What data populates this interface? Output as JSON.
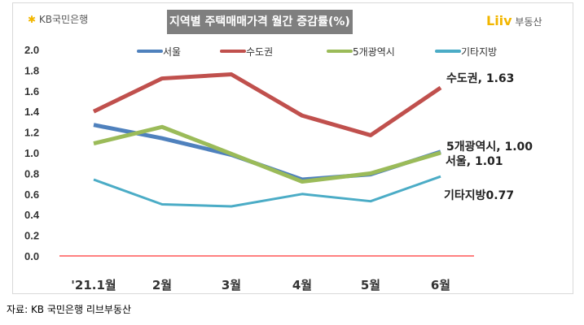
{
  "header": {
    "bank_logo": "KB국민은행",
    "title": "지역별 주택매매가격 월간 증감률(%)",
    "liiv_logo": "Liiv",
    "liiv_text": "부동산"
  },
  "source": "자료: KB 국민은행 리브부동산",
  "chart_data": {
    "type": "line",
    "title": "지역별 주택매매가격 월간 증감률(%)",
    "categories": [
      "'21.1월",
      "2월",
      "3월",
      "4월",
      "5월",
      "6월"
    ],
    "ylim": [
      0,
      2.0
    ],
    "yticks": [
      "0.0",
      "0.2",
      "0.4",
      "0.6",
      "0.8",
      "1.0",
      "1.2",
      "1.4",
      "1.6",
      "1.8",
      "2.0"
    ],
    "legend": "top",
    "grid": false,
    "series": [
      {
        "name": "서울",
        "color": "#4f81bd",
        "values": [
          1.27,
          1.14,
          0.98,
          0.74,
          0.79,
          1.01
        ],
        "label": "서울, 1.01"
      },
      {
        "name": "수도권",
        "color": "#c0504d",
        "values": [
          1.4,
          1.72,
          1.76,
          1.36,
          1.17,
          1.63
        ],
        "label": "수도권, 1.63"
      },
      {
        "name": "5개광역시",
        "color": "#9bbb59",
        "values": [
          1.09,
          1.25,
          0.99,
          0.72,
          0.8,
          1.0
        ],
        "label": "5개광역시, 1.00"
      },
      {
        "name": "기타지방",
        "color": "#4bacc6",
        "values": [
          0.74,
          0.5,
          0.48,
          0.6,
          0.53,
          0.77
        ],
        "label": "기타지방0.77"
      }
    ],
    "zero_line_color": "#ff0000"
  }
}
